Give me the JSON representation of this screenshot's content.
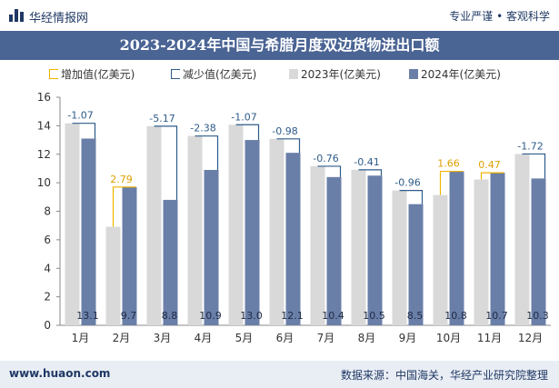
{
  "header": {
    "brand": "华经情报网",
    "tagline": "专业严谨 • 客观科学"
  },
  "chart_data": {
    "type": "bar",
    "title": "2023-2024年中国与希腊月度双边货物进出口额",
    "categories": [
      "1月",
      "2月",
      "3月",
      "4月",
      "5月",
      "6月",
      "7月",
      "8月",
      "9月",
      "10月",
      "11月",
      "12月"
    ],
    "series": [
      {
        "name": "2023年(亿美元)",
        "values": [
          14.17,
          6.91,
          13.97,
          13.28,
          14.07,
          13.08,
          11.16,
          10.91,
          9.46,
          9.14,
          10.23,
          12.02
        ],
        "color": "#d9d9d9"
      },
      {
        "name": "2024年(亿美元)",
        "values": [
          13.1,
          9.7,
          8.8,
          10.9,
          13.0,
          12.1,
          10.4,
          10.5,
          8.5,
          10.8,
          10.7,
          10.3
        ],
        "color": "#6a7fa8"
      }
    ],
    "change": [
      "-1.07",
      "2.79",
      "-5.17",
      "-2.38",
      "-1.07",
      "-0.98",
      "-0.76",
      "-0.41",
      "-0.96",
      "1.66",
      "0.47",
      "-1.72"
    ],
    "data_labels": [
      "13.1",
      "9.7",
      "8.8",
      "10.9",
      "13.0",
      "12.1",
      "10.4",
      "10.5",
      "8.5",
      "10.8",
      "10.7",
      "10.3"
    ],
    "legend": [
      {
        "name": "增加值(亿美元)",
        "kind": "increase"
      },
      {
        "name": "减少值(亿美元)",
        "kind": "decrease"
      },
      {
        "name": "2023年(亿美元)",
        "kind": "y2023"
      },
      {
        "name": "2024年(亿美元)",
        "kind": "y2024"
      }
    ],
    "y_ticks": [
      "0",
      "2",
      "4",
      "6",
      "8",
      "10",
      "12",
      "14",
      "16"
    ],
    "ylim": [
      0,
      16
    ],
    "increase_color": "#f0b400",
    "decrease_color": "#2e5b8a",
    "grid": false
  },
  "footer": {
    "url": "www.huaon.com",
    "source": "数据来源：中国海关，华经产业研究院整理"
  }
}
